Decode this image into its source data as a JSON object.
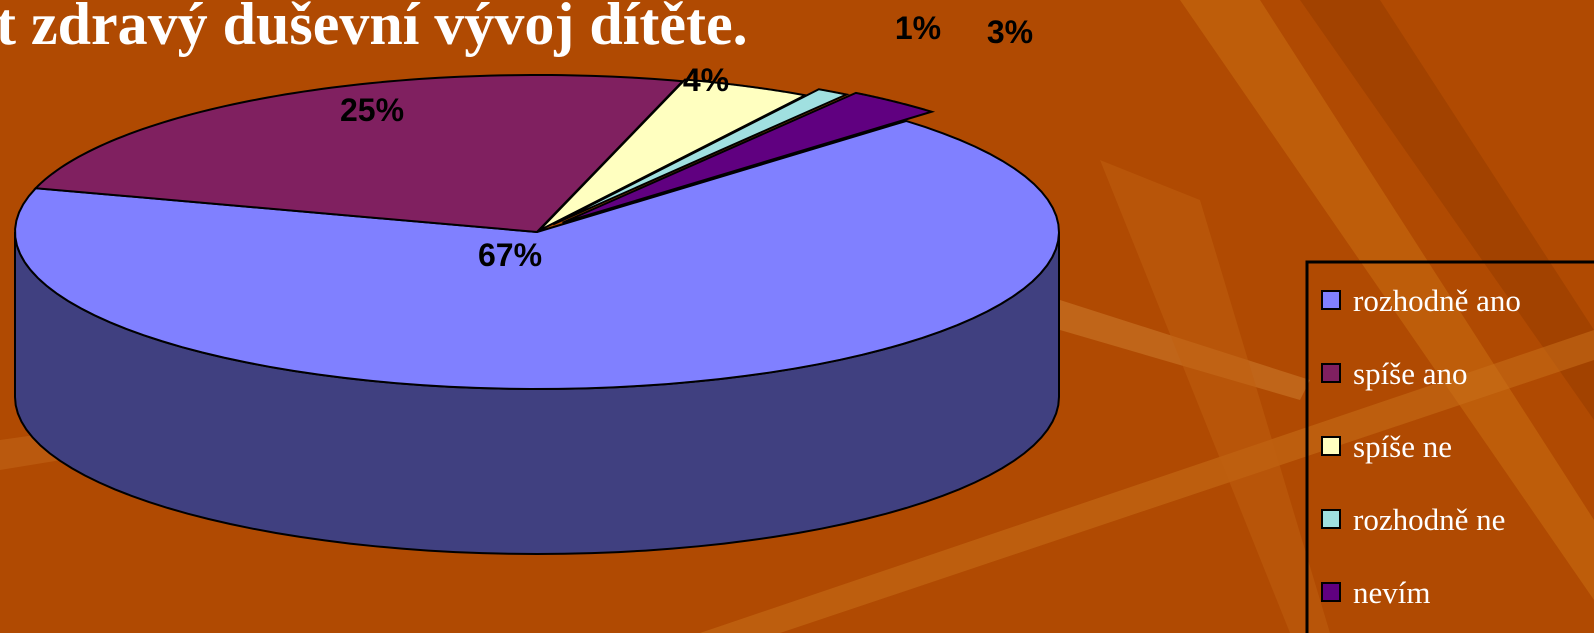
{
  "chart_data": {
    "type": "pie",
    "title": "t zdravý duševní vývoj dítěte.",
    "categories": [
      "rozhodně ano",
      "spíše ano",
      "spíše ne",
      "rozhodně ne",
      "nevím"
    ],
    "values": [
      67,
      25,
      4,
      1,
      3
    ],
    "value_labels": [
      "67%",
      "25%",
      "4%",
      "1%",
      "3%"
    ],
    "colors": [
      "#8080ff",
      "#802060",
      "#ffffc0",
      "#a0e0e0",
      "#600080"
    ],
    "legend": "right"
  }
}
